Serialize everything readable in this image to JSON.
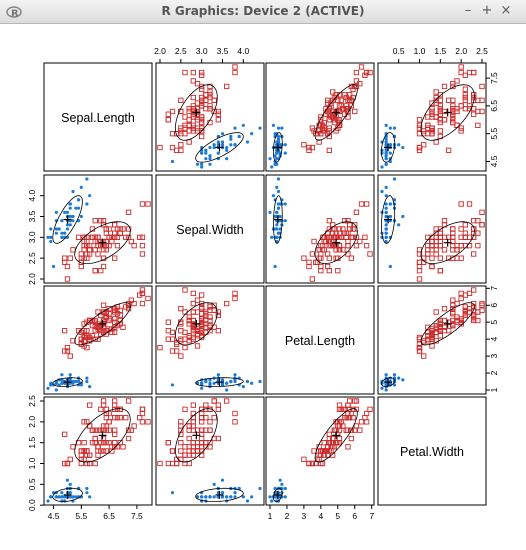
{
  "window": {
    "title": "R Graphics: Device 2 (ACTIVE)",
    "app_icon": "r-logo-icon",
    "controls": {
      "minimize": "–",
      "maximize": "+",
      "close": "×"
    }
  },
  "colors": {
    "setosa": "#1c7bd6",
    "versicolor_virginica": "#cc2b2b",
    "ellipse": "#000000",
    "axis": "#000000"
  },
  "chart_data": {
    "type": "scatter",
    "variables": [
      "Sepal.Length",
      "Sepal.Width",
      "Petal.Length",
      "Petal.Width"
    ],
    "ranges": {
      "Sepal.Length": [
        4.3,
        7.9
      ],
      "Sepal.Width": [
        2.0,
        4.4
      ],
      "Petal.Length": [
        1.0,
        6.9
      ],
      "Petal.Width": [
        0.1,
        2.5
      ]
    },
    "ticks": {
      "Sepal.Length": [
        "4.5",
        "5.5",
        "6.5",
        "7.5"
      ],
      "Sepal.Width": [
        "2.0",
        "2.5",
        "3.0",
        "3.5",
        "4.0"
      ],
      "Petal.Length": [
        "1",
        "2",
        "3",
        "4",
        "5",
        "6",
        "7"
      ],
      "Petal.Width": [
        "0.5",
        "1.0",
        "1.5",
        "2.0",
        "2.5"
      ]
    },
    "ticks_right": {
      "Sepal.Length": [
        "4.5",
        "5.5",
        "6.5",
        "7.5"
      ],
      "Petal.Length": [
        "1",
        "2",
        "3",
        "4",
        "5",
        "6",
        "7"
      ]
    },
    "ticks_left": {
      "Sepal.Width": [
        "2.0",
        "2.5",
        "3.0",
        "3.5",
        "4.0"
      ],
      "Petal.Width": [
        "0.0",
        "0.5",
        "1.0",
        "1.5",
        "2.0",
        "2.5"
      ]
    },
    "ticks_bottom": {
      "Sepal.Length": [
        "4.5",
        "5.5",
        "6.5",
        "7.5"
      ],
      "Petal.Length": [
        "1",
        "2",
        "3",
        "4",
        "5",
        "6",
        "7"
      ]
    },
    "groups": [
      {
        "markers": "filled-dot",
        "color": "#1c7bd6",
        "points": [
          [
            5.1,
            3.5,
            1.4,
            0.2
          ],
          [
            4.9,
            3.0,
            1.4,
            0.2
          ],
          [
            4.7,
            3.2,
            1.3,
            0.2
          ],
          [
            4.6,
            3.1,
            1.5,
            0.2
          ],
          [
            5.0,
            3.6,
            1.4,
            0.2
          ],
          [
            5.4,
            3.9,
            1.7,
            0.4
          ],
          [
            4.6,
            3.4,
            1.4,
            0.3
          ],
          [
            5.0,
            3.4,
            1.5,
            0.2
          ],
          [
            4.4,
            2.9,
            1.4,
            0.2
          ],
          [
            4.9,
            3.1,
            1.5,
            0.1
          ],
          [
            5.4,
            3.7,
            1.5,
            0.2
          ],
          [
            4.8,
            3.4,
            1.6,
            0.2
          ],
          [
            4.8,
            3.0,
            1.4,
            0.1
          ],
          [
            4.3,
            3.0,
            1.1,
            0.1
          ],
          [
            5.8,
            4.0,
            1.2,
            0.2
          ],
          [
            5.7,
            4.4,
            1.5,
            0.4
          ],
          [
            5.4,
            3.9,
            1.3,
            0.4
          ],
          [
            5.1,
            3.5,
            1.4,
            0.3
          ],
          [
            5.7,
            3.8,
            1.7,
            0.3
          ],
          [
            5.1,
            3.8,
            1.5,
            0.3
          ],
          [
            5.4,
            3.4,
            1.7,
            0.2
          ],
          [
            5.1,
            3.7,
            1.5,
            0.4
          ],
          [
            4.6,
            3.6,
            1.0,
            0.2
          ],
          [
            5.1,
            3.3,
            1.7,
            0.5
          ],
          [
            4.8,
            3.4,
            1.9,
            0.2
          ],
          [
            5.0,
            3.0,
            1.6,
            0.2
          ],
          [
            5.0,
            3.4,
            1.6,
            0.4
          ],
          [
            5.2,
            3.5,
            1.5,
            0.2
          ],
          [
            5.2,
            3.4,
            1.4,
            0.2
          ],
          [
            4.7,
            3.2,
            1.6,
            0.2
          ],
          [
            4.8,
            3.1,
            1.6,
            0.2
          ],
          [
            5.4,
            3.4,
            1.5,
            0.4
          ],
          [
            5.2,
            4.1,
            1.5,
            0.1
          ],
          [
            5.5,
            4.2,
            1.4,
            0.2
          ],
          [
            4.9,
            3.1,
            1.5,
            0.2
          ],
          [
            5.0,
            3.2,
            1.2,
            0.2
          ],
          [
            5.5,
            3.5,
            1.3,
            0.2
          ],
          [
            4.9,
            3.6,
            1.4,
            0.1
          ],
          [
            4.4,
            3.0,
            1.3,
            0.2
          ],
          [
            5.1,
            3.4,
            1.5,
            0.2
          ],
          [
            5.0,
            3.5,
            1.3,
            0.3
          ],
          [
            4.5,
            2.3,
            1.3,
            0.3
          ],
          [
            4.4,
            3.2,
            1.3,
            0.2
          ],
          [
            5.0,
            3.5,
            1.6,
            0.6
          ],
          [
            5.1,
            3.8,
            1.9,
            0.4
          ],
          [
            4.8,
            3.0,
            1.4,
            0.3
          ],
          [
            5.1,
            3.8,
            1.6,
            0.2
          ],
          [
            4.6,
            3.2,
            1.4,
            0.2
          ],
          [
            5.3,
            3.7,
            1.5,
            0.2
          ],
          [
            5.0,
            3.3,
            1.4,
            0.2
          ]
        ]
      },
      {
        "markers": "open-square",
        "color": "#cc2b2b",
        "points": [
          [
            7.0,
            3.2,
            4.7,
            1.4
          ],
          [
            6.4,
            3.2,
            4.5,
            1.5
          ],
          [
            6.9,
            3.1,
            4.9,
            1.5
          ],
          [
            5.5,
            2.3,
            4.0,
            1.3
          ],
          [
            6.5,
            2.8,
            4.6,
            1.5
          ],
          [
            5.7,
            2.8,
            4.5,
            1.3
          ],
          [
            6.3,
            3.3,
            4.7,
            1.6
          ],
          [
            4.9,
            2.4,
            3.3,
            1.0
          ],
          [
            6.6,
            2.9,
            4.6,
            1.3
          ],
          [
            5.2,
            2.7,
            3.9,
            1.4
          ],
          [
            5.0,
            2.0,
            3.5,
            1.0
          ],
          [
            5.9,
            3.0,
            4.2,
            1.5
          ],
          [
            6.0,
            2.2,
            4.0,
            1.0
          ],
          [
            6.1,
            2.9,
            4.7,
            1.4
          ],
          [
            5.6,
            2.9,
            3.6,
            1.3
          ],
          [
            6.7,
            3.1,
            4.4,
            1.4
          ],
          [
            5.6,
            3.0,
            4.5,
            1.5
          ],
          [
            5.8,
            2.7,
            4.1,
            1.0
          ],
          [
            6.2,
            2.2,
            4.5,
            1.5
          ],
          [
            5.6,
            2.5,
            3.9,
            1.1
          ],
          [
            5.9,
            3.2,
            4.8,
            1.8
          ],
          [
            6.1,
            2.8,
            4.0,
            1.3
          ],
          [
            6.3,
            2.5,
            4.9,
            1.5
          ],
          [
            6.1,
            2.8,
            4.7,
            1.2
          ],
          [
            6.4,
            2.9,
            4.3,
            1.3
          ],
          [
            6.6,
            3.0,
            4.4,
            1.4
          ],
          [
            6.8,
            2.8,
            4.8,
            1.4
          ],
          [
            6.7,
            3.0,
            5.0,
            1.7
          ],
          [
            6.0,
            2.9,
            4.5,
            1.5
          ],
          [
            5.7,
            2.6,
            3.5,
            1.0
          ],
          [
            5.5,
            2.4,
            3.8,
            1.1
          ],
          [
            5.5,
            2.4,
            3.7,
            1.0
          ],
          [
            5.8,
            2.7,
            3.9,
            1.2
          ],
          [
            6.0,
            2.7,
            5.1,
            1.6
          ],
          [
            5.4,
            3.0,
            4.5,
            1.5
          ],
          [
            6.0,
            3.4,
            4.5,
            1.6
          ],
          [
            6.7,
            3.1,
            4.7,
            1.5
          ],
          [
            6.3,
            2.3,
            4.4,
            1.3
          ],
          [
            5.6,
            3.0,
            4.1,
            1.3
          ],
          [
            5.5,
            2.5,
            4.0,
            1.3
          ],
          [
            5.5,
            2.6,
            4.4,
            1.2
          ],
          [
            6.1,
            3.0,
            4.6,
            1.4
          ],
          [
            5.8,
            2.6,
            4.0,
            1.2
          ],
          [
            5.0,
            2.3,
            3.3,
            1.0
          ],
          [
            5.6,
            2.7,
            4.2,
            1.3
          ],
          [
            5.7,
            3.0,
            4.2,
            1.2
          ],
          [
            5.7,
            2.9,
            4.2,
            1.3
          ],
          [
            6.2,
            2.9,
            4.3,
            1.3
          ],
          [
            5.1,
            2.5,
            3.0,
            1.1
          ],
          [
            5.7,
            2.8,
            4.1,
            1.3
          ],
          [
            6.3,
            3.3,
            6.0,
            2.5
          ],
          [
            5.8,
            2.7,
            5.1,
            1.9
          ],
          [
            7.1,
            3.0,
            5.9,
            2.1
          ],
          [
            6.3,
            2.9,
            5.6,
            1.8
          ],
          [
            6.5,
            3.0,
            5.8,
            2.2
          ],
          [
            7.6,
            3.0,
            6.6,
            2.1
          ],
          [
            4.9,
            2.5,
            4.5,
            1.7
          ],
          [
            7.3,
            2.9,
            6.3,
            1.8
          ],
          [
            6.7,
            2.5,
            5.8,
            1.8
          ],
          [
            7.2,
            3.6,
            6.1,
            2.5
          ],
          [
            6.5,
            3.2,
            5.1,
            2.0
          ],
          [
            6.4,
            2.7,
            5.3,
            1.9
          ],
          [
            6.8,
            3.0,
            5.5,
            2.1
          ],
          [
            5.7,
            2.5,
            5.0,
            2.0
          ],
          [
            5.8,
            2.8,
            5.1,
            2.4
          ],
          [
            6.4,
            3.2,
            5.3,
            2.3
          ],
          [
            6.5,
            3.0,
            5.5,
            1.8
          ],
          [
            7.7,
            3.8,
            6.7,
            2.2
          ],
          [
            7.7,
            2.6,
            6.9,
            2.3
          ],
          [
            6.0,
            2.2,
            5.0,
            1.5
          ],
          [
            6.9,
            3.2,
            5.7,
            2.3
          ],
          [
            5.6,
            2.8,
            4.9,
            2.0
          ],
          [
            7.7,
            2.8,
            6.7,
            2.0
          ],
          [
            6.3,
            2.7,
            4.9,
            1.8
          ],
          [
            6.7,
            3.3,
            5.7,
            2.1
          ],
          [
            7.2,
            3.2,
            6.0,
            1.8
          ],
          [
            6.2,
            2.8,
            4.8,
            1.8
          ],
          [
            6.1,
            3.0,
            4.9,
            1.8
          ],
          [
            6.4,
            2.8,
            5.6,
            2.1
          ],
          [
            7.2,
            3.0,
            5.8,
            1.6
          ],
          [
            7.4,
            2.8,
            6.1,
            1.9
          ],
          [
            7.9,
            3.8,
            6.4,
            2.0
          ],
          [
            6.4,
            2.8,
            5.6,
            2.2
          ],
          [
            6.3,
            2.8,
            5.1,
            1.5
          ],
          [
            6.1,
            2.6,
            5.6,
            1.4
          ],
          [
            7.7,
            3.0,
            6.1,
            2.3
          ],
          [
            6.3,
            3.4,
            5.6,
            2.4
          ],
          [
            6.4,
            3.1,
            5.5,
            1.8
          ],
          [
            6.0,
            3.0,
            4.8,
            1.8
          ],
          [
            6.9,
            3.1,
            5.4,
            2.1
          ],
          [
            6.7,
            3.1,
            5.6,
            2.4
          ],
          [
            6.9,
            3.1,
            5.1,
            2.3
          ],
          [
            5.8,
            2.7,
            5.1,
            1.9
          ],
          [
            6.8,
            3.2,
            5.9,
            2.3
          ],
          [
            6.7,
            3.3,
            5.7,
            2.5
          ],
          [
            6.7,
            3.0,
            5.2,
            2.3
          ],
          [
            6.3,
            2.5,
            5.0,
            1.9
          ],
          [
            6.5,
            3.0,
            5.2,
            2.0
          ],
          [
            6.2,
            3.4,
            5.4,
            2.3
          ],
          [
            5.9,
            3.0,
            5.1,
            1.8
          ]
        ]
      }
    ],
    "grid": false,
    "legend": "none"
  }
}
